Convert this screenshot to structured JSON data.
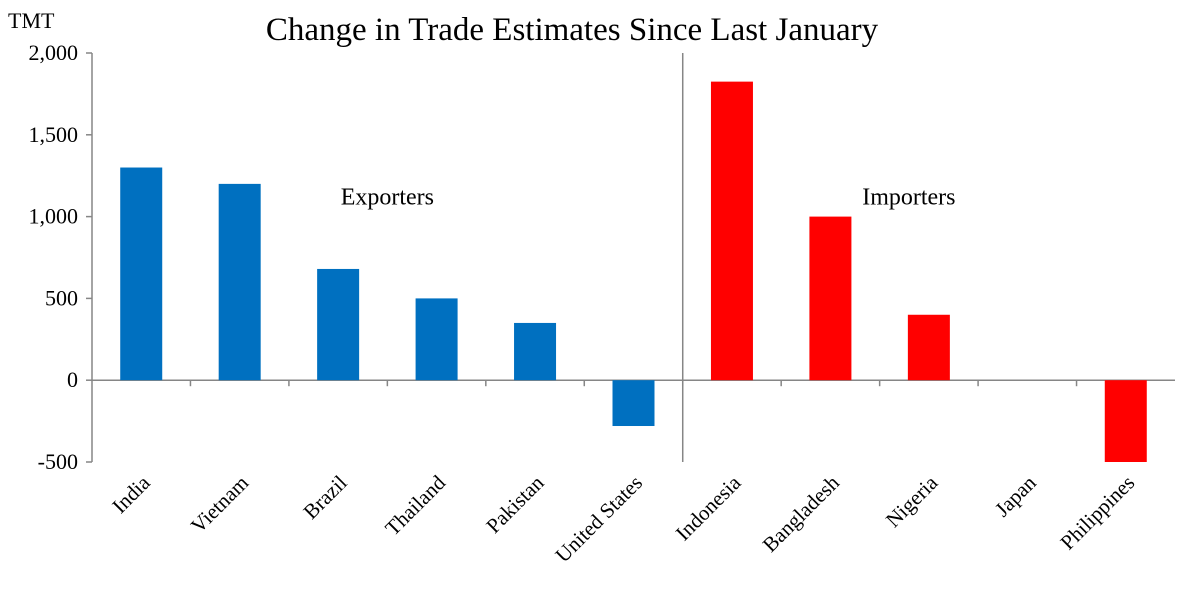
{
  "chart_data": {
    "type": "bar",
    "title": "Change in Trade Estimates Since Last January",
    "ylabel": "TMT",
    "xlabel": "",
    "ylim": [
      -500,
      2000
    ],
    "yticks": [
      2000,
      1500,
      1000,
      500,
      0,
      -500
    ],
    "ytick_labels": [
      "2,000",
      "1,500",
      "1,000",
      "500",
      "0",
      "-500"
    ],
    "grid": false,
    "legend": "none",
    "categories": [
      "India",
      "Vietnam",
      "Brazil",
      "Thailand",
      "Pakistan",
      "United States",
      "Indonesia",
      "Bangladesh",
      "Nigeria",
      "Japan",
      "Philippines"
    ],
    "values": [
      1300,
      1200,
      680,
      500,
      350,
      -280,
      1825,
      1000,
      400,
      0,
      -500
    ],
    "groups": [
      {
        "label": "Exporters",
        "count": 6,
        "color": "#0070C0"
      },
      {
        "label": "Importers",
        "count": 5,
        "color": "#FF0000"
      }
    ]
  }
}
